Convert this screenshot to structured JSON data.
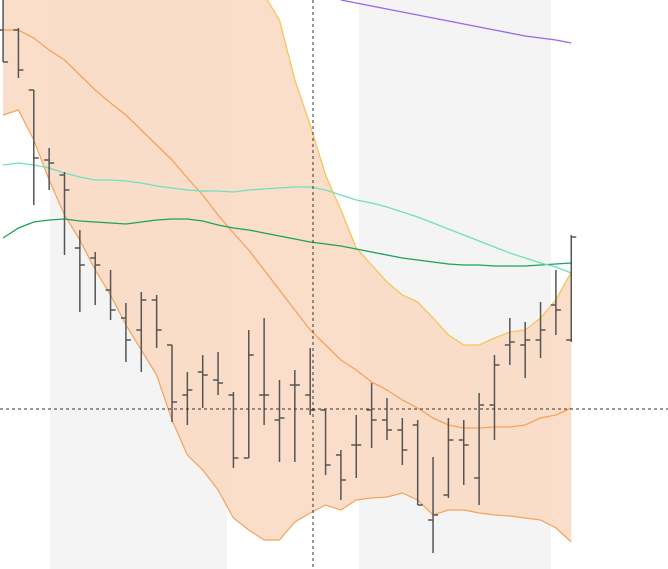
{
  "chart_data": {
    "type": "ohlc",
    "x": [
      0,
      1,
      2,
      3,
      4,
      5,
      6,
      7,
      8,
      9,
      10,
      11,
      12,
      13,
      14,
      15,
      16,
      17,
      18,
      19,
      20,
      21,
      22,
      23,
      24,
      25,
      26,
      27,
      28,
      29,
      30,
      31,
      32,
      33,
      34,
      35,
      36,
      37
    ],
    "xlim": [
      -0.2,
      43.3
    ],
    "ylim": [
      0,
      569
    ],
    "open": [
      539,
      539,
      479,
      409,
      394,
      321,
      311,
      279,
      251,
      239,
      269,
      224,
      174,
      197,
      189,
      174,
      111,
      174,
      149,
      184,
      174,
      159,
      114,
      124,
      159,
      149,
      139,
      144,
      49,
      74,
      129,
      91,
      164,
      224,
      224,
      229,
      264,
      229
    ],
    "high": [
      569,
      541,
      479,
      421,
      397,
      339,
      317,
      299,
      266,
      277,
      274,
      224,
      197,
      214,
      217,
      177,
      239,
      251,
      189,
      199,
      221,
      159,
      119,
      154,
      186,
      171,
      151,
      149,
      112,
      151,
      149,
      176,
      214,
      251,
      247,
      267,
      299,
      334
    ],
    "low": [
      507,
      491,
      364,
      379,
      314,
      257,
      264,
      249,
      207,
      197,
      221,
      147,
      144,
      161,
      174,
      101,
      111,
      144,
      107,
      107,
      154,
      94,
      69,
      91,
      121,
      129,
      104,
      64,
      16,
      71,
      84,
      64,
      129,
      204,
      191,
      211,
      234,
      227
    ],
    "close": [
      507,
      499,
      411,
      406,
      379,
      304,
      304,
      259,
      229,
      269,
      239,
      167,
      179,
      194,
      186,
      111,
      214,
      174,
      151,
      184,
      159,
      104,
      89,
      124,
      149,
      139,
      119,
      64,
      54,
      129,
      124,
      164,
      204,
      227,
      229,
      239,
      259,
      332
    ],
    "bar_color": "#555555",
    "bands": {
      "color": "#f5a35c",
      "upper_color": "#f7c45a",
      "fill": "#f9d8c0",
      "upper": [
        null,
        null,
        null,
        null,
        null,
        null,
        null,
        null,
        null,
        null,
        null,
        null,
        null,
        null,
        null,
        null,
        null,
        574,
        549,
        489,
        444,
        394,
        359,
        321,
        304,
        287,
        274,
        267,
        251,
        234,
        224,
        224,
        231,
        237,
        239,
        251,
        269,
        297
      ],
      "middle": [
        539,
        539,
        531,
        519,
        509,
        494,
        479,
        466,
        454,
        439,
        424,
        409,
        391,
        374,
        354,
        336,
        319,
        299,
        279,
        259,
        239,
        224,
        209,
        199,
        187,
        179,
        169,
        161,
        151,
        144,
        141,
        141,
        142,
        142,
        144,
        151,
        154,
        161
      ],
      "lower": [
        454,
        459,
        429,
        389,
        354,
        329,
        299,
        274,
        244,
        219,
        194,
        149,
        114,
        99,
        79,
        51,
        39,
        29,
        29,
        47,
        56,
        64,
        59,
        69,
        71,
        72,
        76,
        69,
        54,
        59,
        59,
        56,
        54,
        53,
        51,
        49,
        41,
        27
      ]
    },
    "lines": [
      {
        "color": "#1aa35a",
        "values": [
          331,
          341,
          347,
          349,
          350,
          348,
          347,
          346,
          345,
          347,
          349,
          350,
          350,
          348,
          344,
          341,
          339,
          336,
          333,
          330,
          327,
          325,
          323,
          320,
          317,
          314,
          311,
          309,
          307,
          305,
          304,
          304,
          303,
          303,
          303,
          304,
          305,
          306
        ]
      },
      {
        "color": "#6fe0bf",
        "values": [
          404,
          406,
          404,
          401,
          396,
          392,
          389,
          389,
          388,
          386,
          383,
          381,
          379,
          378,
          378,
          377,
          379,
          380,
          381,
          382,
          382,
          379,
          374,
          369,
          366,
          362,
          357,
          352,
          346,
          340,
          334,
          328,
          322,
          316,
          311,
          306,
          302,
          296
        ]
      },
      {
        "color": "#9966ee",
        "values": [
          null,
          null,
          null,
          null,
          null,
          null,
          null,
          null,
          null,
          null,
          null,
          null,
          null,
          null,
          null,
          null,
          null,
          null,
          null,
          null,
          null,
          null,
          569,
          566,
          563,
          560,
          557,
          554,
          551,
          548,
          545,
          542,
          539,
          536,
          533,
          531,
          529,
          526
        ]
      }
    ]
  }
}
